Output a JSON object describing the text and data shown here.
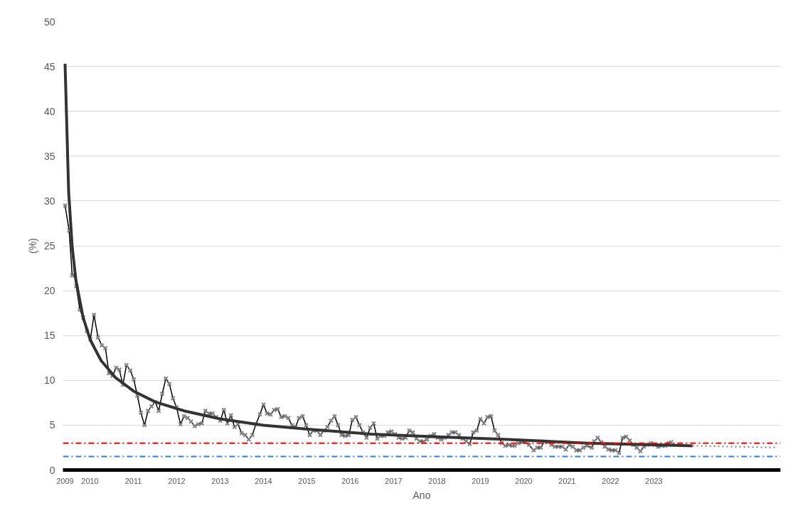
{
  "chart_data": {
    "type": "line",
    "xlabel": "Ano",
    "ylabel": "(%)",
    "xlim": [
      2009.377,
      2025.918
    ],
    "ylim": [
      0,
      50
    ],
    "xticks": [
      {
        "value": 2009.426,
        "label": "2009"
      },
      2010,
      2011,
      2012,
      2013,
      2014,
      2015,
      2016,
      2017,
      2018,
      2019,
      2020,
      2021,
      2022,
      2023
    ],
    "yticks": [
      0,
      5,
      10,
      15,
      20,
      25,
      30,
      35,
      40,
      45,
      50
    ],
    "grid": "y",
    "series": [
      {
        "color": "#000000",
        "marker": "cross",
        "line_style": "solid",
        "x": [
          2009.426,
          2009.52,
          2009.59,
          2009.644,
          2009.684,
          2009.766,
          2009.848,
          2009.93,
          2010.011,
          2010.093,
          2010.185,
          2010.274,
          2010.356,
          2010.438,
          2010.52,
          2010.602,
          2010.677,
          2010.759,
          2010.841,
          2010.93,
          2011.011,
          2011.093,
          2011.175,
          2011.257,
          2011.339,
          2011.421,
          2011.503,
          2011.585,
          2011.667,
          2011.749,
          2011.831,
          2011.913,
          2011.995,
          2012.087,
          2012.169,
          2012.251,
          2012.333,
          2012.415,
          2012.497,
          2012.579,
          2012.661,
          2012.743,
          2012.825,
          2012.907,
          2013.005,
          2013.087,
          2013.169,
          2013.251,
          2013.333,
          2013.415,
          2013.497,
          2013.579,
          2013.661,
          2013.743,
          2013.825,
          2013.918,
          2014.0,
          2014.082,
          2014.164,
          2014.246,
          2014.328,
          2014.41,
          2014.492,
          2014.574,
          2014.656,
          2014.738,
          2014.82,
          2014.902,
          2014.984,
          2015.066,
          2015.148,
          2015.23,
          2015.311,
          2015.393,
          2015.475,
          2015.557,
          2015.639,
          2015.721,
          2015.803,
          2015.885,
          2015.967,
          2016.049,
          2016.131,
          2016.213,
          2016.295,
          2016.377,
          2016.459,
          2016.541,
          2016.623,
          2016.705,
          2016.787,
          2016.869,
          2016.951,
          2017.033,
          2017.115,
          2017.197,
          2017.279,
          2017.361,
          2017.443,
          2017.525,
          2017.607,
          2017.689,
          2017.77,
          2017.852,
          2017.934,
          2018.016,
          2018.098,
          2018.18,
          2018.262,
          2018.344,
          2018.426,
          2018.508,
          2018.59,
          2018.672,
          2018.754,
          2018.836,
          2018.918,
          2019.0,
          2019.082,
          2019.164,
          2019.246,
          2019.328,
          2019.41,
          2019.492,
          2019.574,
          2019.656,
          2019.738,
          2019.792,
          2019.874,
          2019.956,
          2020.038,
          2020.12,
          2020.23,
          2020.311,
          2020.393,
          2020.475,
          2020.557,
          2020.639,
          2020.721,
          2020.803,
          2020.885,
          2020.967,
          2021.049,
          2021.131,
          2021.213,
          2021.295,
          2021.377,
          2021.459,
          2021.569,
          2021.623,
          2021.705,
          2021.787,
          2021.869,
          2021.951,
          2022.033,
          2022.115,
          2022.197,
          2022.279,
          2022.361,
          2022.443,
          2022.525,
          2022.607,
          2022.689,
          2022.77,
          2022.852,
          2022.934,
          2023.016,
          2023.098,
          2023.18,
          2023.262,
          2023.344,
          2023.398
        ],
        "values": [
          29.5,
          26.7,
          21.7,
          21.7,
          20.5,
          17.9,
          17.0,
          15.5,
          14.6,
          17.3,
          14.8,
          13.9,
          13.6,
          10.8,
          10.5,
          11.4,
          11.2,
          9.5,
          11.7,
          11.1,
          10.1,
          8.3,
          6.4,
          5.0,
          6.6,
          7.1,
          7.6,
          6.6,
          8.5,
          10.2,
          9.6,
          8.0,
          7.0,
          5.1,
          6.0,
          5.8,
          5.4,
          4.9,
          5.1,
          5.2,
          6.6,
          6.3,
          6.3,
          5.9,
          5.5,
          6.7,
          5.2,
          6.1,
          4.8,
          5.1,
          4.1,
          3.9,
          3.4,
          3.9,
          5.1,
          6.2,
          7.3,
          6.3,
          6.2,
          6.7,
          6.8,
          5.9,
          6.0,
          5.8,
          5.0,
          4.8,
          5.8,
          6.0,
          5.0,
          3.9,
          4.4,
          4.4,
          3.9,
          4.4,
          4.8,
          5.5,
          6.0,
          5.0,
          3.9,
          3.8,
          3.9,
          5.6,
          5.9,
          5.0,
          4.2,
          3.6,
          4.7,
          5.2,
          3.5,
          3.8,
          3.8,
          4.2,
          4.3,
          4.0,
          3.6,
          3.5,
          3.6,
          4.4,
          4.2,
          3.5,
          3.2,
          3.2,
          3.4,
          3.8,
          4.0,
          3.6,
          3.4,
          3.6,
          3.9,
          4.2,
          4.2,
          3.9,
          3.5,
          3.2,
          2.9,
          4.2,
          4.4,
          5.7,
          5.2,
          5.9,
          6.0,
          4.4,
          3.9,
          3.0,
          2.7,
          2.8,
          2.7,
          2.7,
          3.0,
          3.1,
          3.1,
          2.8,
          2.2,
          2.5,
          2.5,
          3.2,
          3.1,
          2.8,
          2.6,
          2.6,
          2.6,
          2.3,
          2.8,
          2.6,
          2.2,
          2.2,
          2.5,
          2.7,
          2.5,
          3.2,
          3.6,
          3.1,
          2.6,
          2.3,
          2.2,
          2.2,
          1.9,
          3.6,
          3.7,
          3.3,
          2.8,
          2.5,
          2.1,
          2.6,
          2.8,
          3.0,
          2.8,
          2.6,
          2.7,
          2.7,
          3.0,
          3.1
        ]
      },
      {
        "color": "#333333",
        "marker": "none",
        "line_style": "solid",
        "x": [
          2009.426,
          2009.509,
          2009.592,
          2009.675,
          2009.842,
          2010.008,
          2010.257,
          2010.59,
          2011.005,
          2011.504,
          2012.169,
          2013.0,
          2013.998,
          2015.161,
          2016.492,
          2017.987,
          2019.649,
          2021.479,
          2023.472,
          2023.889
        ],
        "values": [
          45.3,
          31.0,
          24.8,
          21.2,
          17.0,
          14.5,
          12.2,
          10.3,
          8.8,
          7.6,
          6.6,
          5.7,
          5.0,
          4.5,
          4.0,
          3.7,
          3.4,
          3.0,
          2.75,
          2.7
        ]
      },
      {
        "color": "#808080",
        "marker": "none",
        "line_style": "dotted",
        "x": [
          2023.889,
          2025.85
        ],
        "values": [
          2.7,
          2.5
        ]
      }
    ],
    "ref_lines": [
      {
        "axis": "y",
        "value": 3,
        "color": "#ff0000",
        "line_style": "dashdot"
      },
      {
        "axis": "y",
        "value": 1.5,
        "color": "#2f80d6",
        "line_style": "dashdot"
      }
    ]
  }
}
